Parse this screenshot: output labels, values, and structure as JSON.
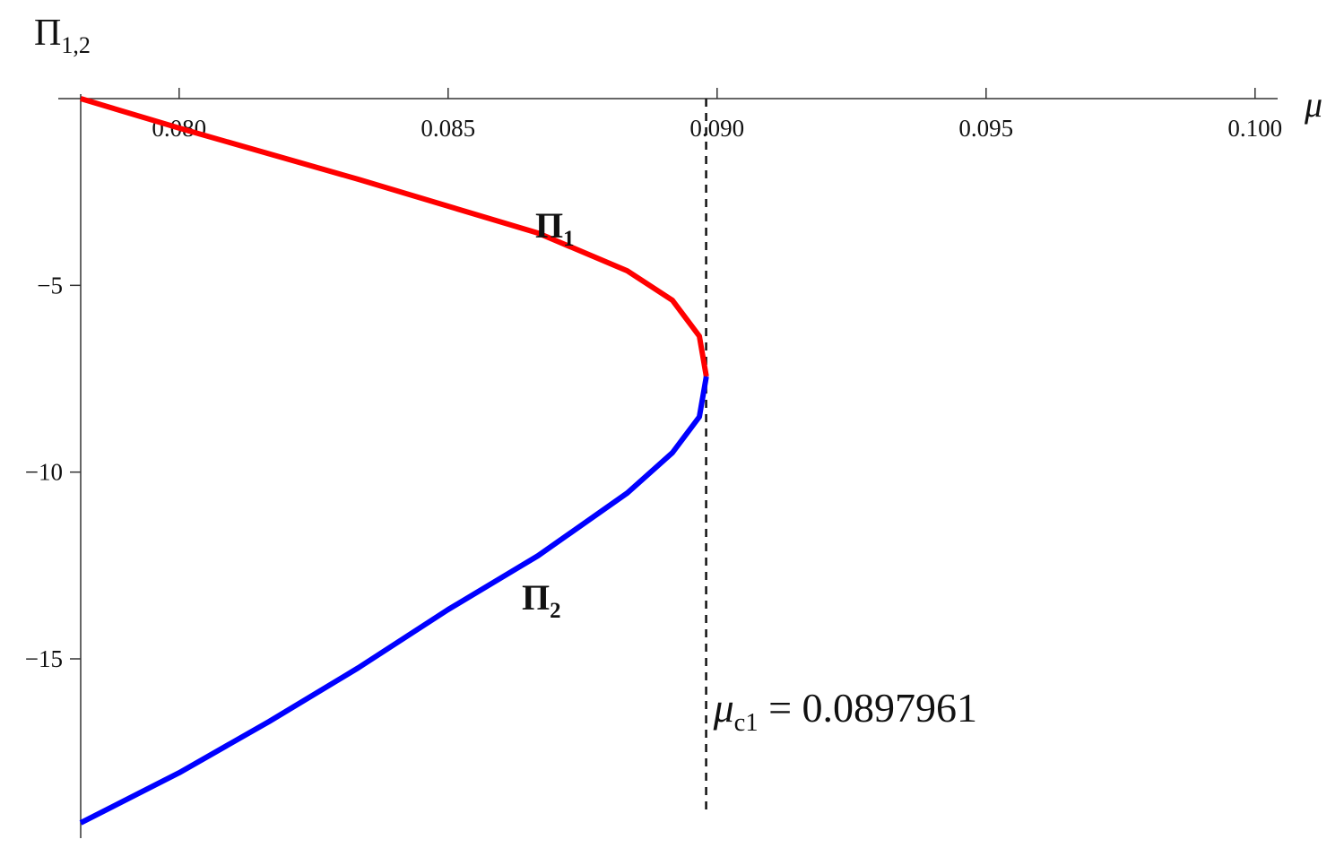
{
  "chart_data": {
    "type": "line",
    "x_label": "μ",
    "y_label": {
      "symbol": "Π",
      "subscript": "1,2"
    },
    "xlim": [
      0.07817,
      0.10042
    ],
    "ylim": [
      -19.8,
      0
    ],
    "xticks": [
      {
        "value": 0.08,
        "label": "0.080"
      },
      {
        "value": 0.085,
        "label": "0.085"
      },
      {
        "value": 0.09,
        "label": "0.090"
      },
      {
        "value": 0.095,
        "label": "0.095"
      },
      {
        "value": 0.1,
        "label": "0.100"
      }
    ],
    "yticks": [
      {
        "value": -5,
        "label": "−5"
      },
      {
        "value": -10,
        "label": "−10"
      },
      {
        "value": -15,
        "label": "−15"
      }
    ],
    "series": [
      {
        "name": {
          "symbol": "Π",
          "subscript": "1"
        },
        "color": "#ff0000",
        "x": [
          0.07817,
          0.08,
          0.08333,
          0.08667,
          0.08833,
          0.08917,
          0.08967,
          0.0898
        ],
        "values": [
          0,
          -0.79,
          -2.16,
          -3.6,
          -4.61,
          -5.4,
          -6.36,
          -7.44
        ]
      },
      {
        "name": {
          "symbol": "Π",
          "subscript": "2"
        },
        "color": "#0000ff",
        "x": [
          0.0898,
          0.08967,
          0.08917,
          0.08833,
          0.08667,
          0.085,
          0.08333,
          0.08167,
          0.08,
          0.07817
        ],
        "values": [
          -7.44,
          -8.52,
          -9.48,
          -10.56,
          -12.24,
          -13.68,
          -15.24,
          -16.68,
          -18.05,
          -19.39
        ]
      }
    ],
    "vline": {
      "value": 0.0897961,
      "label": {
        "symbol": "μ",
        "subscript": "c1",
        "text": " = 0.0897961"
      }
    }
  }
}
